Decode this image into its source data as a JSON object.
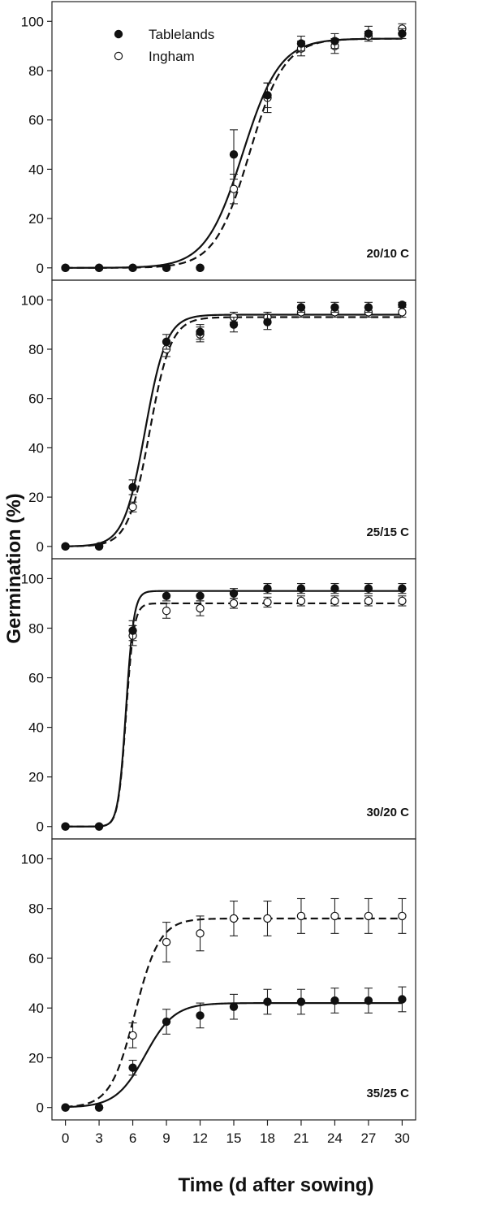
{
  "chart_data": {
    "type": "scatter",
    "ylabel": "Germination (%)",
    "xlabel": "Time (d after sowing)",
    "x_ticks": [
      0,
      3,
      6,
      9,
      12,
      15,
      18,
      21,
      24,
      27,
      30
    ],
    "y_ticks": [
      0,
      20,
      40,
      60,
      80,
      100
    ],
    "xlim": [
      -1.2,
      31.2
    ],
    "ylim": [
      -5,
      108
    ],
    "grid": false,
    "legend": {
      "position": "top-left",
      "entries": [
        {
          "name": "Tablelands",
          "marker": "filled-circle",
          "line": "solid"
        },
        {
          "name": "Ingham",
          "marker": "open-circle",
          "line": "dashed"
        }
      ]
    },
    "panels": [
      {
        "label": "20/10 C",
        "x": [
          0,
          3,
          6,
          9,
          12,
          15,
          18,
          21,
          24,
          27,
          30
        ],
        "series": [
          {
            "name": "Tablelands",
            "values": [
              0,
              0,
              0,
              0,
              0,
              46,
              70,
              91,
              92,
              95,
              95
            ],
            "errors": [
              0,
              0,
              0,
              0,
              0,
              10,
              5,
              3,
              3,
              3,
              2
            ],
            "fit": {
              "max": 93,
              "x50": 15.8,
              "b": 1.65
            }
          },
          {
            "name": "Ingham",
            "values": [
              0,
              0,
              0,
              0,
              0,
              32,
              69,
              89,
              90,
              94,
              97
            ],
            "errors": [
              0,
              0,
              0,
              0,
              0,
              6,
              6,
              3,
              3,
              2,
              2
            ],
            "fit": {
              "max": 93,
              "x50": 16.4,
              "b": 1.55
            }
          }
        ]
      },
      {
        "label": "25/15 C",
        "x": [
          0,
          3,
          6,
          9,
          12,
          15,
          18,
          21,
          24,
          27,
          30
        ],
        "series": [
          {
            "name": "Tablelands",
            "values": [
              0,
              0,
              24,
              83,
              87,
              90,
              91,
              97,
              97,
              97,
              98
            ],
            "errors": [
              0,
              0,
              3,
              3,
              3,
              3,
              3,
              2,
              2,
              2,
              1
            ],
            "fit": {
              "max": 94,
              "x50": 7.1,
              "b": 0.95
            }
          },
          {
            "name": "Ingham",
            "values": [
              0,
              0,
              16,
              80,
              86,
              93,
              93,
              95,
              95,
              95,
              95
            ],
            "errors": [
              0,
              0,
              2,
              3,
              3,
              2,
              2,
              2,
              2,
              2,
              2
            ],
            "fit": {
              "max": 93,
              "x50": 7.5,
              "b": 0.95
            }
          }
        ]
      },
      {
        "label": "30/20 C",
        "x": [
          0,
          3,
          6,
          9,
          12,
          15,
          18,
          21,
          24,
          27,
          30
        ],
        "series": [
          {
            "name": "Tablelands",
            "values": [
              0,
              0,
              79,
              93,
              93,
              94,
              96,
              96,
              96,
              96,
              96
            ],
            "errors": [
              0,
              0,
              4,
              2,
              2,
              2,
              2,
              2,
              2,
              2,
              2
            ],
            "fit": {
              "max": 95,
              "x50": 5.4,
              "b": 0.35
            }
          },
          {
            "name": "Ingham",
            "values": [
              0,
              0,
              77,
              87,
              88,
              90,
              90.5,
              91,
              91,
              91,
              91
            ],
            "errors": [
              0,
              0,
              4,
              3,
              3,
              2,
              2,
              2,
              2,
              2,
              2
            ],
            "fit": {
              "max": 90,
              "x50": 5.4,
              "b": 0.35
            }
          }
        ]
      },
      {
        "label": "35/25 C",
        "x": [
          0,
          3,
          6,
          9,
          12,
          15,
          18,
          21,
          24,
          27,
          30
        ],
        "series": [
          {
            "name": "Tablelands",
            "values": [
              0,
              0,
              16,
              34.5,
              37,
              40.5,
              42.5,
              42.5,
              43,
              43,
              43.5
            ],
            "errors": [
              0,
              0,
              3,
              5,
              5,
              5,
              5,
              5,
              5,
              5,
              5
            ],
            "fit": {
              "max": 42,
              "x50": 7.1,
              "b": 1.3
            }
          },
          {
            "name": "Ingham",
            "values": [
              0,
              0,
              29,
              66.5,
              70,
              76,
              76,
              77,
              77,
              77,
              77
            ],
            "errors": [
              0,
              0,
              5,
              8,
              7,
              7,
              7,
              7,
              7,
              7,
              7
            ],
            "fit": {
              "max": 76,
              "x50": 6.2,
              "b": 1.1
            }
          }
        ]
      }
    ]
  }
}
